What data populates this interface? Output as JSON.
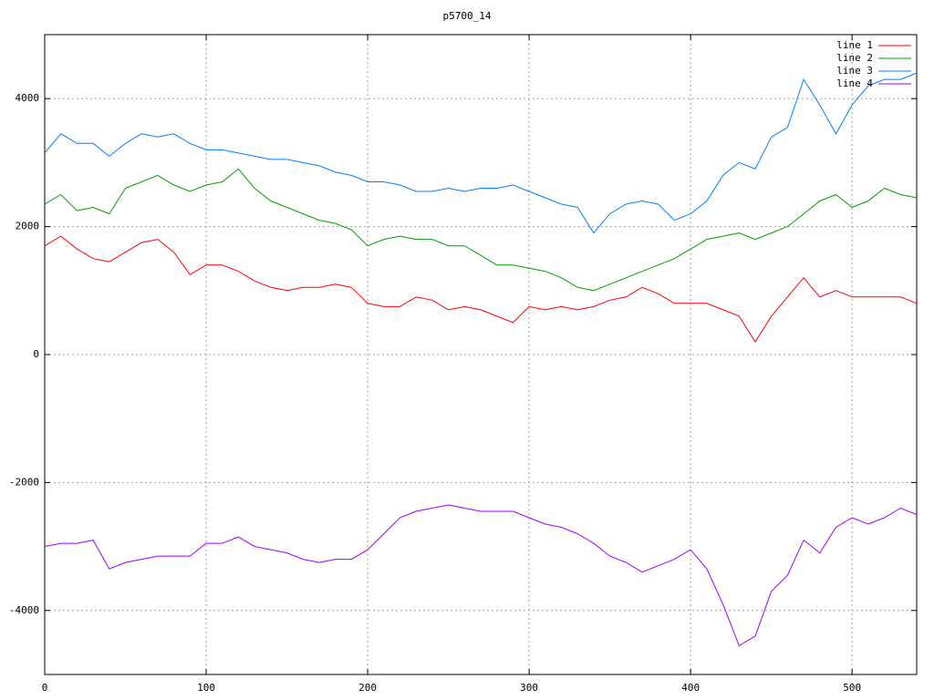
{
  "chart_data": {
    "type": "line",
    "title": "p5700_14",
    "x": [
      0,
      10,
      20,
      30,
      40,
      50,
      60,
      70,
      80,
      90,
      100,
      110,
      120,
      130,
      140,
      150,
      160,
      170,
      180,
      190,
      200,
      210,
      220,
      230,
      240,
      250,
      260,
      270,
      280,
      290,
      300,
      310,
      320,
      330,
      340,
      350,
      360,
      370,
      380,
      390,
      400,
      410,
      420,
      430,
      440,
      450,
      460,
      470,
      480,
      490,
      500,
      510,
      520,
      530,
      540
    ],
    "series": [
      {
        "name": "line 1",
        "color": "#ff0000",
        "values": [
          1700,
          1850,
          1650,
          1500,
          1450,
          1600,
          1750,
          1800,
          1600,
          1250,
          1400,
          1400,
          1300,
          1150,
          1050,
          1000,
          1050,
          1050,
          1100,
          1050,
          800,
          750,
          750,
          900,
          850,
          700,
          750,
          700,
          600,
          500,
          750,
          700,
          750,
          700,
          750,
          850,
          900,
          1050,
          950,
          800,
          800,
          800,
          700,
          600,
          200,
          600,
          900,
          1200,
          900,
          1000,
          900,
          900,
          900,
          900,
          800
        ]
      },
      {
        "name": "line 2",
        "color": "#00a000",
        "values": [
          2350,
          2500,
          2250,
          2300,
          2200,
          2600,
          2700,
          2800,
          2650,
          2550,
          2650,
          2700,
          2900,
          2600,
          2400,
          2300,
          2200,
          2100,
          2050,
          1950,
          1700,
          1800,
          1850,
          1800,
          1800,
          1700,
          1700,
          1550,
          1400,
          1400,
          1350,
          1300,
          1200,
          1050,
          1000,
          1100,
          1200,
          1300,
          1400,
          1500,
          1650,
          1800,
          1850,
          1900,
          1800,
          1900,
          2000,
          2200,
          2400,
          2500,
          2300,
          2400,
          2600,
          2500,
          2450
        ]
      },
      {
        "name": "line 3",
        "color": "#0080ff",
        "values": [
          3150,
          3450,
          3300,
          3300,
          3100,
          3300,
          3450,
          3400,
          3450,
          3300,
          3200,
          3200,
          3150,
          3100,
          3050,
          3050,
          3000,
          2950,
          2850,
          2800,
          2700,
          2700,
          2650,
          2550,
          2550,
          2600,
          2550,
          2600,
          2600,
          2650,
          2550,
          2450,
          2350,
          2300,
          1900,
          2200,
          2350,
          2400,
          2350,
          2100,
          2200,
          2400,
          2800,
          3000,
          2900,
          3400,
          3550,
          4300,
          3900,
          3450,
          3900,
          4200,
          4300,
          4300,
          4400
        ]
      },
      {
        "name": "line 4",
        "color": "#a000ff",
        "values": [
          -3000,
          -2950,
          -2950,
          -2900,
          -3350,
          -3250,
          -3200,
          -3150,
          -3150,
          -3150,
          -2950,
          -2950,
          -2850,
          -3000,
          -3050,
          -3100,
          -3200,
          -3250,
          -3200,
          -3200,
          -3050,
          -2800,
          -2550,
          -2450,
          -2400,
          -2350,
          -2400,
          -2450,
          -2450,
          -2450,
          -2550,
          -2650,
          -2700,
          -2800,
          -2950,
          -3150,
          -3250,
          -3400,
          -3300,
          -3200,
          -3050,
          -3350,
          -3900,
          -4550,
          -4400,
          -3700,
          -3450,
          -2900,
          -3100,
          -2700,
          -2550,
          -2650,
          -2550,
          -2400,
          -2500
        ]
      }
    ],
    "xlim": [
      0,
      540
    ],
    "xticks": [
      0,
      100,
      200,
      300,
      400,
      500
    ],
    "ylim": [
      -5000,
      5000
    ],
    "yticks": [
      -4000,
      -2000,
      0,
      2000,
      4000
    ],
    "grid": true,
    "legend": "top right"
  }
}
